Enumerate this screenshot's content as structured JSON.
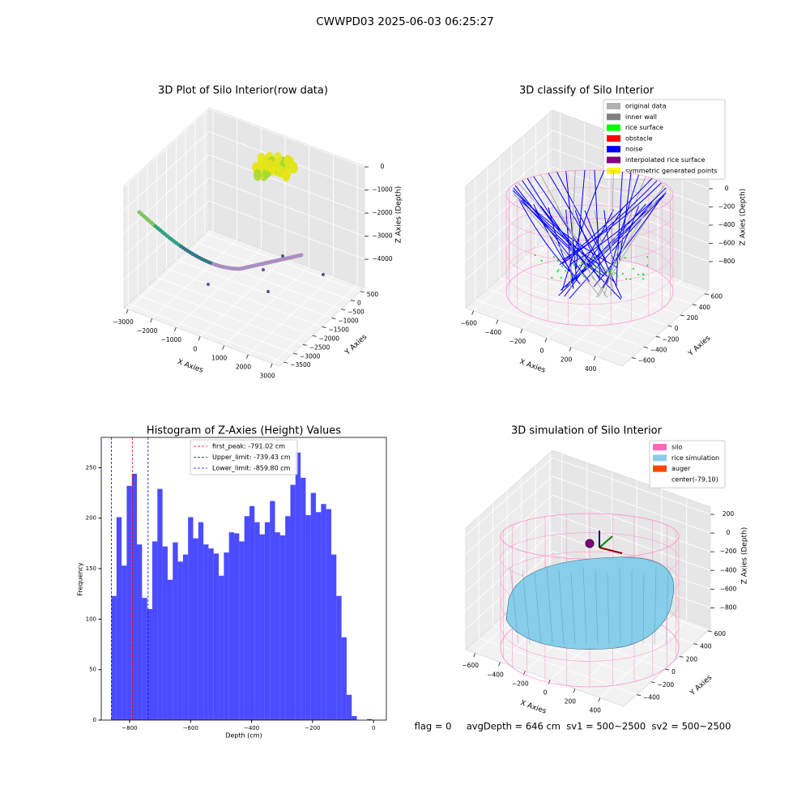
{
  "title": "CWWPD03 2025-06-03 06:25:27",
  "footer": "flag = 0     avgDepth = 646 cm  sv1 = 500~2500  sv2 = 500~2500",
  "chart_data": [
    {
      "type": "scatter3d",
      "title": "3D Plot of Silo Interior(row data)",
      "xlabel": "X Axies",
      "ylabel": "Y Axies",
      "zlabel": "Z Axies (Depth)",
      "xlim": [
        -3170,
        3300
      ],
      "ylim": [
        -3720,
        720
      ],
      "zlim": [
        -5226,
        37
      ],
      "xticks": [
        {
          "value": -3000,
          "label": "−3000"
        },
        {
          "value": -2000,
          "label": "−2000"
        },
        {
          "value": -1000,
          "label": "−1000"
        },
        0,
        1000,
        2000,
        3000
      ],
      "yticks": [
        {
          "value": -3500,
          "label": "−3500"
        },
        {
          "value": -3000,
          "label": "−3000"
        },
        {
          "value": -2500,
          "label": "−2500"
        },
        {
          "value": -2000,
          "label": "−2000"
        },
        {
          "value": -1500,
          "label": "−1500"
        },
        {
          "value": -1000,
          "label": "−1000"
        },
        {
          "value": -500,
          "label": "−500"
        },
        0,
        500
      ],
      "zticks": [
        0,
        {
          "value": -1000,
          "label": "−1000"
        },
        {
          "value": -2000,
          "label": "−2000"
        },
        {
          "value": -3000,
          "label": "−3000"
        },
        {
          "value": -4000,
          "label": "−4000"
        }
      ]
    },
    {
      "type": "scatter3d",
      "title": "3D classify of Silo Interior",
      "xlabel": "X Axies",
      "ylabel": "Y Axies",
      "zlabel": "Z Axies (Depth)",
      "xlim": [
        -664,
        618
      ],
      "ylim": [
        -757,
        671
      ],
      "zlim": [
        -1111,
        222
      ],
      "xticks": [
        {
          "value": -600,
          "label": "−600"
        },
        {
          "value": -400,
          "label": "−400"
        },
        {
          "value": -200,
          "label": "−200"
        },
        0,
        200,
        400
      ],
      "yticks": [
        {
          "value": -600,
          "label": "−600"
        },
        {
          "value": -400,
          "label": "−400"
        },
        {
          "value": -200,
          "label": "−200"
        },
        0,
        200,
        400,
        600
      ],
      "zticks": [
        0,
        {
          "value": -200,
          "label": "−200"
        },
        {
          "value": -400,
          "label": "−400"
        },
        {
          "value": -600,
          "label": "−600"
        },
        {
          "value": -800,
          "label": "−800"
        }
      ],
      "legend": [
        {
          "name": "original data",
          "color": "#b0b0b0"
        },
        {
          "name": "inner wall",
          "color": "#808080"
        },
        {
          "name": "rice surface",
          "color": "#00ff00"
        },
        {
          "name": "obstacle",
          "color": "#ff0000"
        },
        {
          "name": "noise",
          "color": "#0000ff"
        },
        {
          "name": "interpolated rice surface",
          "color": "#800080"
        },
        {
          "name": "symmetric generated points",
          "color": "#ffff00"
        }
      ]
    },
    {
      "type": "histogram",
      "title": "Histogram of Z-Axies (Height) Values",
      "xlabel": "Depth (cm)",
      "ylabel": "Frequency",
      "color": "#0000ff",
      "bins": [
        -859.8,
        -843.0,
        -826.3,
        -809.5,
        -792.7,
        -776.0,
        -759.2,
        -742.4,
        -725.6,
        -708.9,
        -692.1,
        -675.3,
        -658.6,
        -641.8,
        -625.0,
        -608.3,
        -591.5,
        -574.7,
        -557.9,
        -541.2,
        -524.4,
        -507.6,
        -490.9,
        -474.1,
        -457.3,
        -440.6,
        -423.8,
        -407.0,
        -390.2,
        -373.5,
        -356.7,
        -339.9,
        -323.2,
        -306.4,
        -289.6,
        -272.8,
        -256.1,
        -239.3,
        -222.5,
        -205.8,
        -189.0,
        -172.2,
        -155.5,
        -138.7,
        -121.9,
        -105.1,
        -88.4,
        -71.6,
        -54.8,
        -38.1,
        -21.3,
        -4.5
      ],
      "values": [
        123,
        201,
        153,
        232,
        244,
        174,
        121,
        110,
        177,
        229,
        172,
        139,
        176,
        157,
        164,
        201,
        180,
        196,
        174,
        170,
        165,
        143,
        166,
        186,
        185,
        177,
        202,
        212,
        196,
        184,
        196,
        217,
        186,
        183,
        202,
        233,
        265,
        240,
        203,
        225,
        206,
        214,
        209,
        164,
        123,
        82,
        25,
        4,
        0,
        0,
        1
      ],
      "xlim": [
        -893,
        42
      ],
      "ylim": [
        0,
        280
      ],
      "xticks": [
        {
          "value": -800,
          "label": "−800"
        },
        {
          "value": -600,
          "label": "−600"
        },
        {
          "value": -400,
          "label": "−400"
        },
        {
          "value": -200,
          "label": "−200"
        },
        0
      ],
      "yticks": [
        0,
        50,
        100,
        150,
        200,
        250
      ],
      "lines": [
        {
          "name": "first_peak: -791.02 cm",
          "value": -791.02,
          "color": "#ff0000"
        },
        {
          "name": "Upper_limit: -739.43 cm",
          "value": -739.43,
          "color": "#0000ff"
        },
        {
          "name": "Lower_limit: -859.80 cm",
          "value": -859.8,
          "color": "#0000ff"
        }
      ]
    },
    {
      "type": "surface3d",
      "title": "3D simulation of Silo Interior",
      "xlabel": "X Axies",
      "ylabel": "Y Axies",
      "zlabel": "Z Axies (Depth)",
      "xlim": [
        -676,
        590
      ],
      "ylim": [
        -583,
        637
      ],
      "zlim": [
        -1021,
        278
      ],
      "xticks": [
        {
          "value": -600,
          "label": "−600"
        },
        {
          "value": -400,
          "label": "−400"
        },
        {
          "value": -200,
          "label": "−200"
        },
        0,
        200,
        400
      ],
      "yticks": [
        {
          "value": -400,
          "label": "−400"
        },
        {
          "value": -200,
          "label": "−200"
        },
        0,
        200,
        400,
        600
      ],
      "zticks": [
        200,
        0,
        {
          "value": -200,
          "label": "−200"
        },
        {
          "value": -400,
          "label": "−400"
        },
        {
          "value": -600,
          "label": "−600"
        },
        {
          "value": -800,
          "label": "−800"
        }
      ],
      "legend": [
        {
          "name": "silo",
          "color": "#ff69b4"
        },
        {
          "name": "rice simulation",
          "color": "#87ceeb"
        },
        {
          "name": "auger",
          "color": "#ff4500"
        },
        {
          "name": "center(-79,10)",
          "color": "#ffffff"
        }
      ]
    }
  ]
}
